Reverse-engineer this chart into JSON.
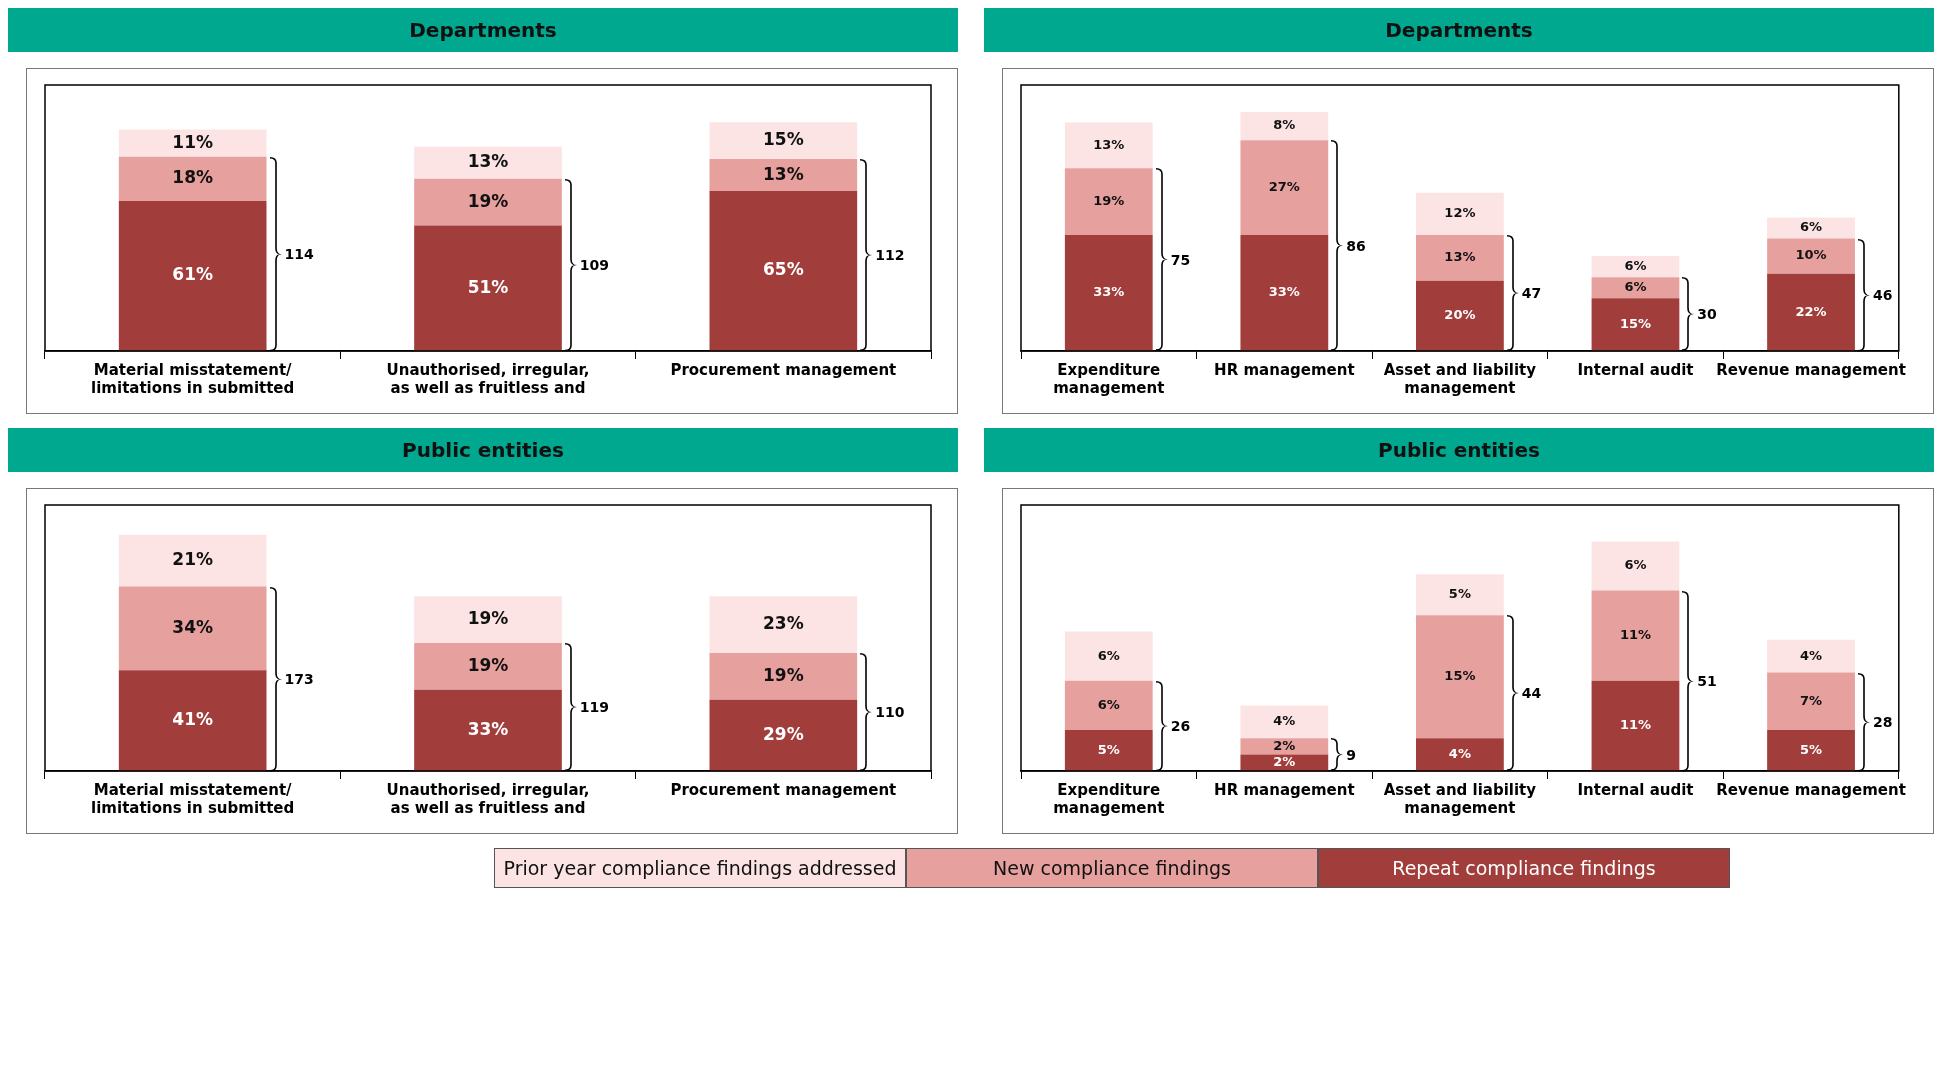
{
  "chart_data": [
    {
      "type": "bar",
      "title": "Departments",
      "stacked": true,
      "categories": [
        "Material misstatement/ limitations in submitted",
        "Unauthorised, irregular, as well as fruitless and",
        "Procurement management"
      ],
      "series": [
        {
          "color": "#a13d3a",
          "values": [
            61,
            51,
            65
          ],
          "value_labels": [
            "61%",
            "51%",
            "65%"
          ]
        },
        {
          "color": "#e6a09e",
          "values": [
            18,
            19,
            13
          ],
          "value_labels": [
            "18%",
            "19%",
            "13%"
          ]
        },
        {
          "color": "#fce4e4",
          "values": [
            11,
            13,
            15
          ],
          "value_labels": [
            "11%",
            "13%",
            "15%"
          ]
        }
      ],
      "annotations": [
        "114",
        "109",
        "112"
      ]
    },
    {
      "type": "bar",
      "title": "Departments",
      "stacked": true,
      "categories": [
        "Expenditure management",
        "HR management",
        "Asset and liability management",
        "Internal audit",
        "Revenue management"
      ],
      "series": [
        {
          "color": "#a13d3a",
          "values": [
            33,
            33,
            20,
            15,
            22
          ],
          "value_labels": [
            "33%",
            "33%",
            "20%",
            "15%",
            "22%"
          ]
        },
        {
          "color": "#e6a09e",
          "values": [
            19,
            27,
            13,
            6,
            10
          ],
          "value_labels": [
            "19%",
            "27%",
            "13%",
            "6%",
            "10%"
          ]
        },
        {
          "color": "#fce4e4",
          "values": [
            13,
            8,
            12,
            6,
            6
          ],
          "value_labels": [
            "13%",
            "8%",
            "12%",
            "6%",
            "6%"
          ]
        }
      ],
      "annotations": [
        "75",
        "86",
        "47",
        "30",
        "46"
      ]
    },
    {
      "type": "bar",
      "title": "Public entities",
      "stacked": true,
      "categories": [
        "Material misstatement/ limitations in submitted",
        "Unauthorised, irregular, as well as fruitless and",
        "Procurement management"
      ],
      "series": [
        {
          "color": "#a13d3a",
          "values": [
            41,
            33,
            29
          ],
          "value_labels": [
            "41%",
            "33%",
            "29%"
          ]
        },
        {
          "color": "#e6a09e",
          "values": [
            34,
            19,
            19
          ],
          "value_labels": [
            "34%",
            "19%",
            "19%"
          ]
        },
        {
          "color": "#fce4e4",
          "values": [
            21,
            19,
            23
          ],
          "value_labels": [
            "21%",
            "19%",
            "23%"
          ]
        }
      ],
      "annotations": [
        "173",
        "119",
        "110"
      ]
    },
    {
      "type": "bar",
      "title": "Public entities",
      "stacked": true,
      "legend": "bottom",
      "categories": [
        "Expenditure management",
        "HR management",
        "Asset and liability management",
        "Internal audit",
        "Revenue management"
      ],
      "series": [
        {
          "name": "Repeat compliance findings",
          "color": "#a13d3a",
          "values": [
            5,
            2,
            4,
            11,
            5
          ],
          "value_labels": [
            "5%",
            "2%",
            "4%",
            "11%",
            "5%"
          ]
        },
        {
          "name": "New compliance findings",
          "color": "#e6a09e",
          "values": [
            6,
            2,
            15,
            11,
            7
          ],
          "value_labels": [
            "6%",
            "2%",
            "15%",
            "11%",
            "7%"
          ]
        },
        {
          "name": "Prior year compliance findings addressed",
          "color": "#fce4e4",
          "values": [
            6,
            4,
            5,
            6,
            4
          ],
          "value_labels": [
            "6%",
            "4%",
            "5%",
            "6%",
            "4%"
          ]
        }
      ],
      "annotations": [
        "26",
        "9",
        "44",
        "51",
        "28"
      ]
    }
  ]
}
